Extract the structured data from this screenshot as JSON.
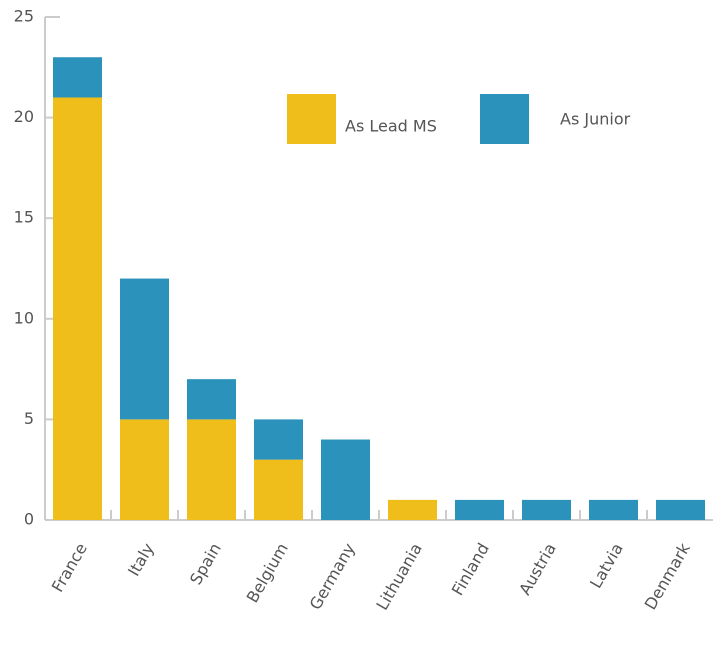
{
  "chart_data": {
    "type": "stacked_bar",
    "categories": [
      "France",
      "Italy",
      "Spain",
      "Belgium",
      "Germany",
      "Lithuania",
      "Finland",
      "Austria",
      "Latvia",
      "Denmark"
    ],
    "series": [
      {
        "name": "As Lead MS",
        "color": "#f0be1a",
        "values": [
          21,
          5,
          5,
          3,
          0,
          1,
          0,
          0,
          0,
          0
        ]
      },
      {
        "name": "As Junior",
        "color": "#2b92bb",
        "values": [
          2,
          7,
          2,
          2,
          4,
          0,
          1,
          1,
          1,
          1
        ]
      }
    ],
    "ylim": [
      0,
      25
    ],
    "yticks": [
      0,
      5,
      10,
      15,
      20,
      25
    ]
  }
}
